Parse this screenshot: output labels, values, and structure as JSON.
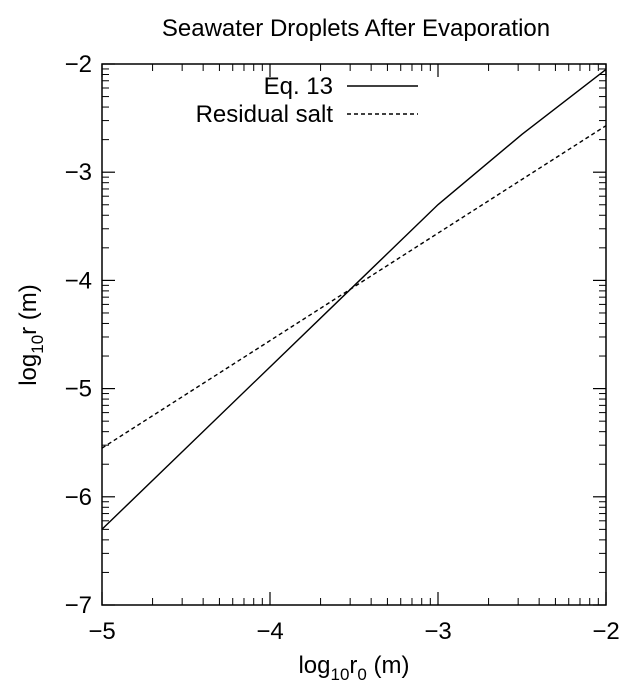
{
  "chart_data": {
    "type": "line",
    "title": "Seawater Droplets After Evaporation",
    "xlabel": {
      "prefix": "log",
      "sub1": "10",
      "mid": "r",
      "sub2": "0",
      "suffix": " (m)"
    },
    "ylabel": {
      "prefix": "log",
      "sub1": "10",
      "mid": "r",
      "suffix": " (m)"
    },
    "xlim": [
      -5,
      -2
    ],
    "ylim": [
      -7,
      -2
    ],
    "x_ticks": [
      -5,
      -4,
      -3,
      -2
    ],
    "x_tick_labels": [
      "−5",
      "−4",
      "−3",
      "−2"
    ],
    "y_ticks": [
      -7,
      -6,
      -5,
      -4,
      -3,
      -2
    ],
    "y_tick_labels": [
      "−7",
      "−6",
      "−5",
      "−4",
      "−3",
      "−2"
    ],
    "grid": false,
    "legend_position": "top-right",
    "series": [
      {
        "name": "Eq. 13",
        "style": "solid",
        "color": "#000000",
        "x": [
          -5,
          -4.5,
          -4,
          -3.5,
          -3,
          -2.5,
          -2
        ],
        "y": [
          -6.3,
          -5.55,
          -4.8,
          -4.05,
          -3.3,
          -2.65,
          -2.05
        ]
      },
      {
        "name": "Residual salt",
        "style": "dashed",
        "color": "#000000",
        "x": [
          -5,
          -2
        ],
        "y": [
          -5.55,
          -2.57
        ]
      }
    ]
  }
}
